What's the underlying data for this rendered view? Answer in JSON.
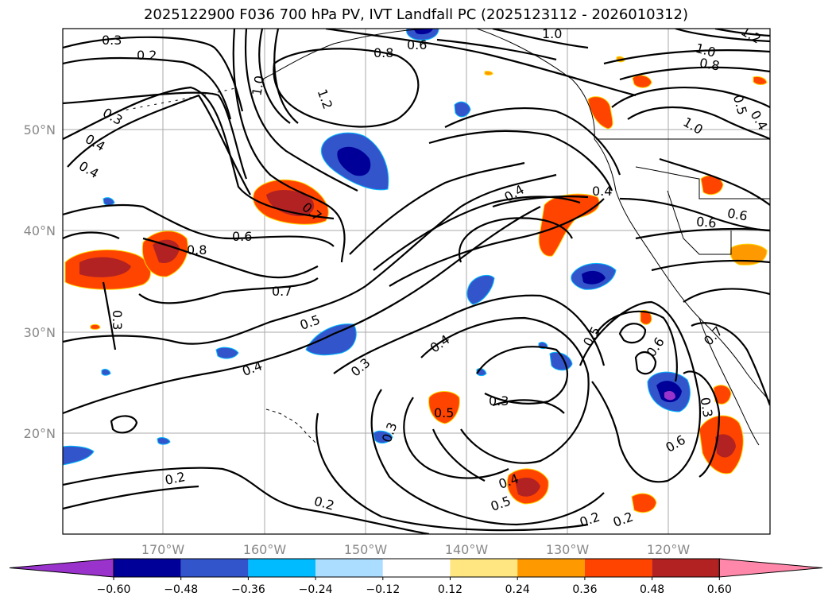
{
  "title": "2025122900 F036 700 hPa PV, IVT Landfall PC (2025123112 - 2026010312)",
  "map": {
    "lon_labels": [
      "170°W",
      "160°W",
      "150°W",
      "140°W",
      "130°W",
      "120°W"
    ],
    "lat_labels": [
      "50°N",
      "40°N",
      "30°N",
      "20°N"
    ],
    "contour_labels": [
      "0.3",
      "0.2",
      "0.3",
      "0.4",
      "0.4",
      "1.0",
      "1.2",
      "0.6",
      "0.8",
      "1.0",
      "1.2",
      "1.0",
      "0.8",
      "0.5",
      "0.4",
      "1.0",
      "0.4",
      "0.4",
      "0.7",
      "0.6",
      "0.8",
      "0.7",
      "0.5",
      "0.3",
      "0.4",
      "0.3",
      "0.4",
      "0.3",
      "0.5",
      "0.3",
      "0.5",
      "0.6",
      "0.6",
      "0.3",
      "0.2",
      "0.2",
      "0.4",
      "0.5",
      "0.2",
      "0.2",
      "0.6",
      "0.6",
      "0.7"
    ]
  },
  "colorbar": {
    "tick_labels": [
      "−0.60",
      "−0.48",
      "−0.36",
      "−0.24",
      "−0.12",
      "0.12",
      "0.24",
      "0.36",
      "0.48",
      "0.60"
    ],
    "colors": [
      "#9933cc",
      "#000099",
      "#3355cc",
      "#00bbff",
      "#aaddff",
      "#ffffff",
      "#ffe680",
      "#ff9900",
      "#ff4400",
      "#b22222",
      "#ff88aa"
    ]
  }
}
